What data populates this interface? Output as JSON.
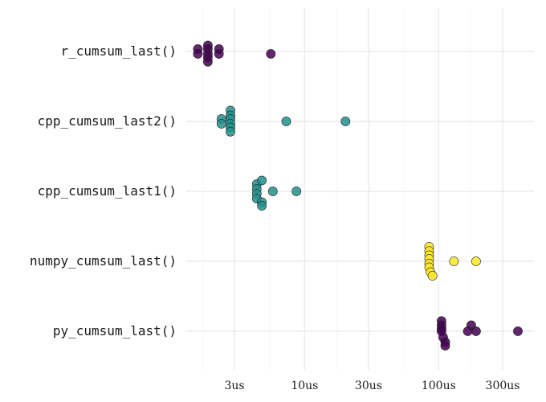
{
  "chart_data": {
    "type": "scatter",
    "subtype": "beeswarm",
    "x_scale": "log10",
    "x_unit": "us",
    "x_ticks": [
      {
        "value": 3,
        "label": "3us"
      },
      {
        "value": 10,
        "label": "10us"
      },
      {
        "value": 30,
        "label": "30us"
      },
      {
        "value": 100,
        "label": "100us"
      },
      {
        "value": 300,
        "label": "300us"
      }
    ],
    "xlim": [
      1.2,
      460
    ],
    "grid": true,
    "legend": "none",
    "categories": [
      "r_cumsum_last()",
      "cpp_cumsum_last2()",
      "cpp_cumsum_last1()",
      "numpy_cumsum_last()",
      "py_cumsum_last()"
    ],
    "series": [
      {
        "category": "r_cumsum_last()",
        "color": "#440154",
        "points": [
          {
            "x": 1.6,
            "y": 0.2
          },
          {
            "x": 1.6,
            "y": -0.2
          },
          {
            "x": 1.9,
            "y": 0.5
          },
          {
            "x": 1.9,
            "y": 0.2
          },
          {
            "x": 1.9,
            "y": -0.2
          },
          {
            "x": 1.9,
            "y": -0.5
          },
          {
            "x": 1.9,
            "y": -0.85
          },
          {
            "x": 2.3,
            "y": 0.2
          },
          {
            "x": 2.3,
            "y": -0.2
          },
          {
            "x": 5.6,
            "y": -0.2
          }
        ]
      },
      {
        "category": "cpp_cumsum_last2()",
        "color": "#21908C",
        "points": [
          {
            "x": 2.4,
            "y": 0.2
          },
          {
            "x": 2.4,
            "y": -0.2
          },
          {
            "x": 2.8,
            "y": 0.9
          },
          {
            "x": 2.8,
            "y": 0.5
          },
          {
            "x": 2.8,
            "y": 0.2
          },
          {
            "x": 2.8,
            "y": -0.2
          },
          {
            "x": 2.8,
            "y": -0.5
          },
          {
            "x": 2.8,
            "y": -0.85
          },
          {
            "x": 7.3,
            "y": 0
          },
          {
            "x": 20.2,
            "y": 0
          }
        ]
      },
      {
        "category": "cpp_cumsum_last1()",
        "color": "#21908C",
        "points": [
          {
            "x": 4.4,
            "y": 0.6
          },
          {
            "x": 4.4,
            "y": 0.2
          },
          {
            "x": 4.4,
            "y": -0.2
          },
          {
            "x": 4.4,
            "y": -0.6
          },
          {
            "x": 4.8,
            "y": 0.9
          },
          {
            "x": 4.8,
            "y": -0.9
          },
          {
            "x": 4.8,
            "y": -1.2
          },
          {
            "x": 5.8,
            "y": 0
          },
          {
            "x": 8.7,
            "y": 0
          }
        ]
      },
      {
        "category": "numpy_cumsum_last()",
        "color": "#FDE725",
        "points": [
          {
            "x": 85,
            "y": 1.2
          },
          {
            "x": 85,
            "y": 0.85
          },
          {
            "x": 85,
            "y": 0.5
          },
          {
            "x": 85,
            "y": 0.2
          },
          {
            "x": 85,
            "y": -0.2
          },
          {
            "x": 85,
            "y": -0.5
          },
          {
            "x": 87,
            "y": -0.9
          },
          {
            "x": 90,
            "y": -1.2
          },
          {
            "x": 130,
            "y": 0
          },
          {
            "x": 190,
            "y": 0
          }
        ]
      },
      {
        "category": "py_cumsum_last()",
        "color": "#440154",
        "points": [
          {
            "x": 105,
            "y": 0.85
          },
          {
            "x": 105,
            "y": 0.5
          },
          {
            "x": 105,
            "y": 0.2
          },
          {
            "x": 105,
            "y": 0
          },
          {
            "x": 108,
            "y": -0.5
          },
          {
            "x": 112,
            "y": -0.9
          },
          {
            "x": 112,
            "y": -1.2
          },
          {
            "x": 175,
            "y": 0.5
          },
          {
            "x": 165,
            "y": 0
          },
          {
            "x": 190,
            "y": 0
          },
          {
            "x": 390,
            "y": 0
          }
        ]
      }
    ]
  }
}
